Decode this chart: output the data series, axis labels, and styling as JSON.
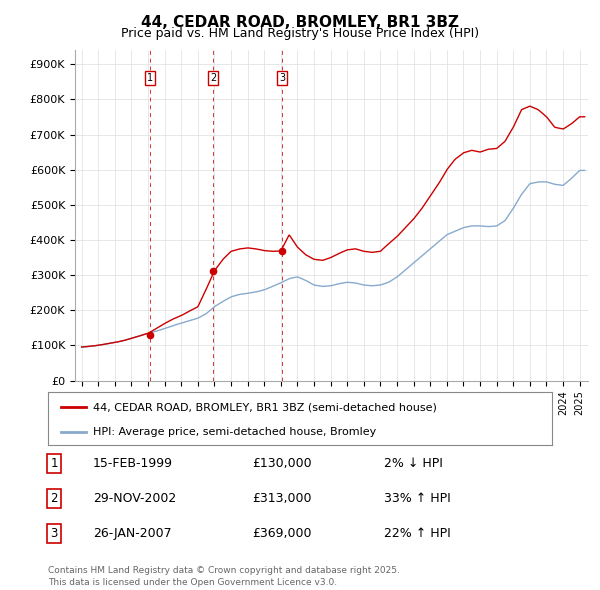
{
  "title": "44, CEDAR ROAD, BROMLEY, BR1 3BZ",
  "subtitle": "Price paid vs. HM Land Registry's House Price Index (HPI)",
  "legend_line1": "44, CEDAR ROAD, BROMLEY, BR1 3BZ (semi-detached house)",
  "legend_line2": "HPI: Average price, semi-detached house, Bromley",
  "footer": "Contains HM Land Registry data © Crown copyright and database right 2025.\nThis data is licensed under the Open Government Licence v3.0.",
  "transactions": [
    {
      "num": 1,
      "date": "15-FEB-1999",
      "price": "£130,000",
      "hpi": "2% ↓ HPI",
      "year": 1999.12
    },
    {
      "num": 2,
      "date": "29-NOV-2002",
      "price": "£313,000",
      "hpi": "33% ↑ HPI",
      "year": 2002.91
    },
    {
      "num": 3,
      "date": "26-JAN-2007",
      "price": "£369,000",
      "hpi": "22% ↑ HPI",
      "year": 2007.07
    }
  ],
  "transaction_values": [
    130000,
    313000,
    369000
  ],
  "ylim": [
    0,
    940000
  ],
  "yticks": [
    0,
    100000,
    200000,
    300000,
    400000,
    500000,
    600000,
    700000,
    800000,
    900000
  ],
  "ytick_labels": [
    "£0",
    "£100K",
    "£200K",
    "£300K",
    "£400K",
    "£500K",
    "£600K",
    "£700K",
    "£800K",
    "£900K"
  ],
  "xlim_start": 1994.6,
  "xlim_end": 2025.5,
  "red_color": "#cc0000",
  "blue_color": "#88aacc",
  "background_color": "#ffffff",
  "grid_color": "#dddddd",
  "hpi_anchors_x": [
    1995,
    1995.5,
    1996,
    1996.5,
    1997,
    1997.5,
    1998,
    1998.5,
    1999,
    1999.5,
    2000,
    2000.5,
    2001,
    2001.5,
    2002,
    2002.5,
    2003,
    2003.5,
    2004,
    2004.5,
    2005,
    2005.5,
    2006,
    2006.5,
    2007,
    2007.5,
    2008,
    2008.5,
    2009,
    2009.5,
    2010,
    2010.5,
    2011,
    2011.5,
    2012,
    2012.5,
    2013,
    2013.5,
    2014,
    2014.5,
    2015,
    2015.5,
    2016,
    2016.5,
    2017,
    2017.5,
    2018,
    2018.5,
    2019,
    2019.5,
    2020,
    2020.5,
    2021,
    2021.5,
    2022,
    2022.5,
    2023,
    2023.5,
    2024,
    2024.5,
    2025
  ],
  "hpi_anchors_y": [
    95000,
    97000,
    100000,
    104000,
    108000,
    113000,
    120000,
    127000,
    134000,
    140000,
    148000,
    156000,
    163000,
    170000,
    177000,
    190000,
    210000,
    225000,
    238000,
    245000,
    248000,
    252000,
    258000,
    268000,
    278000,
    290000,
    295000,
    285000,
    272000,
    268000,
    270000,
    276000,
    280000,
    278000,
    272000,
    270000,
    272000,
    280000,
    295000,
    315000,
    335000,
    355000,
    375000,
    395000,
    415000,
    425000,
    435000,
    440000,
    440000,
    438000,
    440000,
    455000,
    490000,
    530000,
    560000,
    565000,
    565000,
    558000,
    555000,
    575000,
    598000
  ],
  "price_anchors_x": [
    1995,
    1995.5,
    1996,
    1996.5,
    1997,
    1997.5,
    1998,
    1998.5,
    1999,
    1999.5,
    2000,
    2000.5,
    2001,
    2001.5,
    2002,
    2002.5,
    2003,
    2003.5,
    2004,
    2004.5,
    2005,
    2005.5,
    2006,
    2006.5,
    2007,
    2007.5,
    2008,
    2008.5,
    2009,
    2009.5,
    2010,
    2010.5,
    2011,
    2011.5,
    2012,
    2012.5,
    2013,
    2013.5,
    2014,
    2014.5,
    2015,
    2015.5,
    2016,
    2016.5,
    2017,
    2017.5,
    2018,
    2018.5,
    2019,
    2019.5,
    2020,
    2020.5,
    2021,
    2021.5,
    2022,
    2022.5,
    2023,
    2023.5,
    2024,
    2024.5,
    2025
  ],
  "price_anchors_y": [
    95000,
    97000,
    100000,
    104000,
    108000,
    113000,
    120000,
    127000,
    134000,
    148000,
    162000,
    175000,
    185000,
    198000,
    210000,
    260000,
    313000,
    345000,
    368000,
    375000,
    378000,
    375000,
    370000,
    368000,
    369000,
    415000,
    380000,
    358000,
    345000,
    342000,
    350000,
    362000,
    372000,
    375000,
    368000,
    365000,
    368000,
    390000,
    410000,
    435000,
    460000,
    490000,
    525000,
    560000,
    600000,
    630000,
    648000,
    655000,
    650000,
    658000,
    660000,
    680000,
    720000,
    770000,
    780000,
    770000,
    750000,
    720000,
    715000,
    730000,
    750000
  ]
}
